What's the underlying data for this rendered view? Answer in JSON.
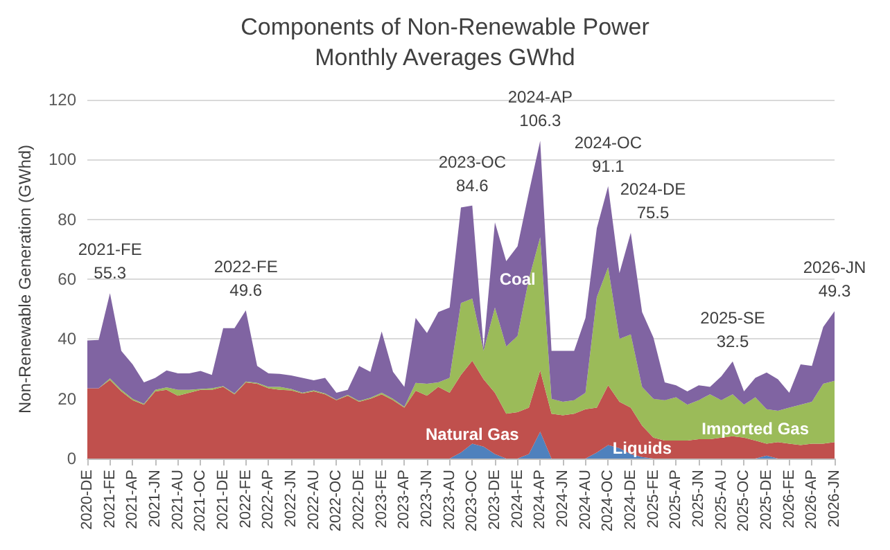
{
  "chart_data": {
    "type": "area",
    "title": "Components of Non-Renewable Power",
    "subtitle": "Monthly Averages GWhd",
    "ylabel": "Non-Renewable Generation (GWhd)",
    "x": [
      "2020-12",
      "2021-01",
      "2021-02",
      "2021-03",
      "2021-04",
      "2021-05",
      "2021-06",
      "2021-07",
      "2021-08",
      "2021-09",
      "2021-10",
      "2021-11",
      "2021-12",
      "2022-01",
      "2022-02",
      "2022-03",
      "2022-04",
      "2022-05",
      "2022-06",
      "2022-07",
      "2022-08",
      "2022-09",
      "2022-10",
      "2022-11",
      "2022-12",
      "2023-01",
      "2023-02",
      "2023-03",
      "2023-04",
      "2023-05",
      "2023-06",
      "2023-07",
      "2023-08",
      "2023-09",
      "2023-10",
      "2023-11",
      "2023-12",
      "2024-01",
      "2024-02",
      "2024-03",
      "2024-04",
      "2024-05",
      "2024-06",
      "2024-07",
      "2024-08",
      "2024-09",
      "2024-10",
      "2024-11",
      "2024-12",
      "2025-01",
      "2025-02",
      "2025-03",
      "2025-04",
      "2025-05",
      "2025-06",
      "2025-07",
      "2025-08",
      "2025-09",
      "2025-10",
      "2025-11",
      "2025-12",
      "2026-01",
      "2026-02",
      "2026-03",
      "2026-04",
      "2026-05",
      "2026-06"
    ],
    "xticks": [
      {
        "value": "2020-12",
        "label": "2020-DE"
      },
      {
        "value": "2021-02",
        "label": "2021-FE"
      },
      {
        "value": "2021-04",
        "label": "2021-AP"
      },
      {
        "value": "2021-06",
        "label": "2021-JN"
      },
      {
        "value": "2021-08",
        "label": "2021-AU"
      },
      {
        "value": "2021-10",
        "label": "2021-OC"
      },
      {
        "value": "2021-12",
        "label": "2021-DE"
      },
      {
        "value": "2022-02",
        "label": "2022-FE"
      },
      {
        "value": "2022-04",
        "label": "2022-AP"
      },
      {
        "value": "2022-06",
        "label": "2022-JN"
      },
      {
        "value": "2022-08",
        "label": "2022-AU"
      },
      {
        "value": "2022-10",
        "label": "2022-OC"
      },
      {
        "value": "2022-12",
        "label": "2022-DE"
      },
      {
        "value": "2023-02",
        "label": "2023-FE"
      },
      {
        "value": "2023-04",
        "label": "2023-AP"
      },
      {
        "value": "2023-06",
        "label": "2023-JN"
      },
      {
        "value": "2023-08",
        "label": "2023-AU"
      },
      {
        "value": "2023-10",
        "label": "2023-OC"
      },
      {
        "value": "2023-12",
        "label": "2023-DE"
      },
      {
        "value": "2024-02",
        "label": "2024-FE"
      },
      {
        "value": "2024-04",
        "label": "2024-AP"
      },
      {
        "value": "2024-06",
        "label": "2024-JN"
      },
      {
        "value": "2024-08",
        "label": "2024-AU"
      },
      {
        "value": "2024-10",
        "label": "2024-OC"
      },
      {
        "value": "2024-12",
        "label": "2024-DE"
      },
      {
        "value": "2025-02",
        "label": "2025-FE"
      },
      {
        "value": "2025-04",
        "label": "2025-AP"
      },
      {
        "value": "2025-06",
        "label": "2025-JN"
      },
      {
        "value": "2025-08",
        "label": "2025-AU"
      },
      {
        "value": "2025-10",
        "label": "2025-OC"
      },
      {
        "value": "2025-12",
        "label": "2025-DE"
      },
      {
        "value": "2026-02",
        "label": "2026-FE"
      },
      {
        "value": "2026-04",
        "label": "2026-AP"
      },
      {
        "value": "2026-06",
        "label": "2026-JN"
      }
    ],
    "xlim": [
      "2020-12",
      "2026-06"
    ],
    "ylim": [
      0,
      120
    ],
    "yticks": [
      0,
      20,
      40,
      60,
      80,
      100,
      120
    ],
    "grid": "y",
    "legend": false,
    "stacked": true,
    "series": [
      {
        "name": "Liquids",
        "color": "#4f81bd",
        "values": [
          0,
          0,
          0,
          0,
          0,
          0,
          0,
          0,
          0,
          0,
          0,
          0,
          0,
          0,
          0,
          0,
          0,
          0,
          0,
          0,
          0,
          0,
          0,
          0,
          0,
          0,
          0,
          0,
          0,
          0,
          0,
          0,
          0,
          2,
          5,
          4,
          1.5,
          0,
          0,
          1.5,
          9,
          0,
          0,
          0,
          0,
          2,
          4.5,
          3.5,
          1.5,
          0.5,
          0,
          0,
          0,
          0,
          0,
          0,
          0,
          0,
          0,
          0,
          1,
          0,
          0,
          0,
          0,
          0,
          0
        ]
      },
      {
        "name": "Natural Gas",
        "color": "#c0504d",
        "values": [
          23.5,
          23.5,
          26.3,
          22.5,
          19.5,
          18,
          22.5,
          23,
          21,
          22,
          23,
          23,
          24,
          21.5,
          25.5,
          25,
          23.5,
          23,
          22.8,
          21.8,
          22.5,
          21.5,
          19.5,
          21,
          19,
          20,
          21.5,
          19.5,
          17,
          22.7,
          21,
          24,
          22,
          26,
          27.7,
          22.5,
          20.5,
          15,
          15.5,
          15.5,
          20.5,
          15,
          14.5,
          15,
          16.5,
          15,
          20,
          15.5,
          15.5,
          10.5,
          7,
          6,
          6,
          6,
          6.5,
          6.5,
          7,
          7.5,
          7,
          6,
          4,
          5.5,
          5,
          4.5,
          5,
          5,
          5.5
        ]
      },
      {
        "name": "Imported Gas",
        "color": "#9bbb59",
        "values": [
          0,
          0,
          0.5,
          0.5,
          0.5,
          0.3,
          0.5,
          0.8,
          2,
          1,
          0.3,
          0.5,
          0.2,
          0.3,
          0.3,
          0.3,
          0.5,
          1,
          0.5,
          0.2,
          0.3,
          0.3,
          0.2,
          0.3,
          0.3,
          0.3,
          0.5,
          0.5,
          0.3,
          2.6,
          4,
          1.5,
          5,
          24,
          20.8,
          9.5,
          28.5,
          22.5,
          25.5,
          43,
          44.5,
          5,
          4.5,
          4.5,
          5.5,
          37,
          39.5,
          21,
          24.5,
          13,
          13,
          13.5,
          14.5,
          12,
          13,
          15,
          12.5,
          14,
          11,
          14.5,
          11.5,
          10.5,
          12,
          13.5,
          14,
          20,
          20.5
        ]
      },
      {
        "name": "Coal",
        "color": "#8064a2",
        "values": [
          16,
          16.2,
          28.5,
          13,
          11.5,
          7.2,
          4,
          5.7,
          5.5,
          5.5,
          6,
          4.5,
          19.4,
          21.8,
          23.8,
          5.7,
          4.5,
          4.3,
          4.5,
          5,
          3.4,
          5.2,
          2.3,
          1.7,
          11.7,
          8.7,
          20.5,
          9,
          6.7,
          21.7,
          17,
          23.5,
          23.5,
          32,
          31.1,
          1,
          28.5,
          28.5,
          30,
          29,
          32.3,
          16,
          17,
          16.5,
          25,
          23,
          27.1,
          22,
          34,
          25,
          20.5,
          6,
          4,
          4.5,
          5,
          2.5,
          8,
          11,
          4.5,
          6.5,
          12.3,
          10.5,
          5,
          13.5,
          12,
          19,
          23.3
        ]
      }
    ],
    "annotations": [
      {
        "text": "2021-FE\n55.3",
        "x": "2021-02",
        "y": 55.3
      },
      {
        "text": "2022-FE\n49.6",
        "x": "2022-02",
        "y": 49.6
      },
      {
        "text": "2023-OC\n84.6",
        "x": "2023-10",
        "y": 84.6
      },
      {
        "text": "2024-AP\n106.3",
        "x": "2024-04",
        "y": 106.3
      },
      {
        "text": "2024-OC\n91.1",
        "x": "2024-10",
        "y": 91.1
      },
      {
        "text": "2024-DE\n75.5",
        "x": "2024-12",
        "y": 75.5
      },
      {
        "text": "2025-SE\n32.5",
        "x": "2025-09",
        "y": 32.5
      },
      {
        "text": "2026-JN\n49.3",
        "x": "2026-06",
        "y": 49.3
      }
    ]
  }
}
